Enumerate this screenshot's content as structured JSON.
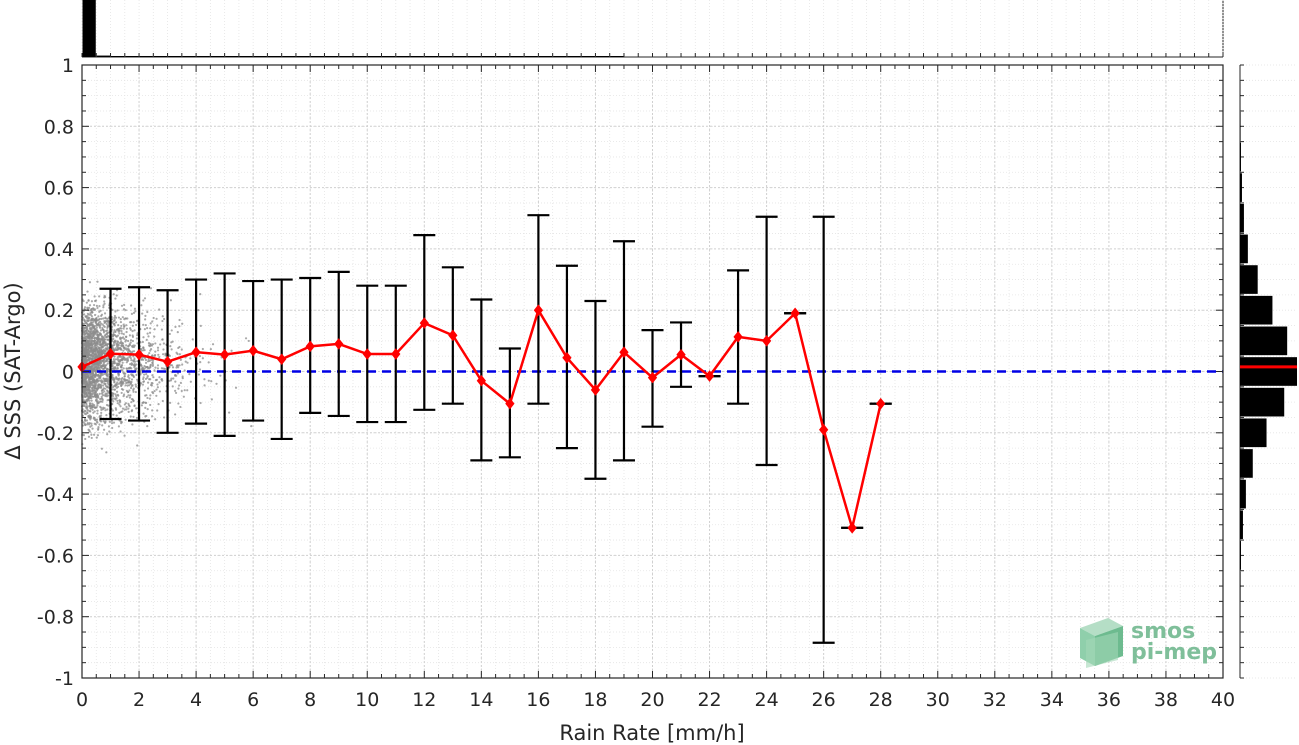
{
  "chart_data": {
    "type": "scatter",
    "title": "",
    "xlabel": "Rain Rate [mm/h]",
    "ylabel": "Δ SSS (SAT-Argo)",
    "xlim": [
      0,
      40
    ],
    "ylim": [
      -1,
      1
    ],
    "x_ticks": [
      "0",
      "2",
      "4",
      "6",
      "8",
      "10",
      "12",
      "14",
      "16",
      "18",
      "20",
      "22",
      "24",
      "26",
      "28",
      "30",
      "32",
      "34",
      "36",
      "38",
      "40"
    ],
    "y_ticks": [
      "1",
      "0.8",
      "0.6",
      "0.4",
      "0.2",
      "0",
      "-0.2",
      "-0.4",
      "-0.6",
      "-0.8",
      "-1"
    ],
    "grid": true,
    "reference_line": {
      "y": 0,
      "color": "#0000e6",
      "style": "dashed"
    },
    "mean_series": {
      "color": "#ff0000",
      "x": [
        0,
        1,
        2,
        3,
        4,
        5,
        6,
        7,
        8,
        9,
        10,
        11,
        12,
        13,
        14,
        15,
        16,
        17,
        18,
        19,
        20,
        21,
        22,
        23,
        24,
        25,
        26,
        27,
        28
      ],
      "mean": [
        0.015,
        0.058,
        0.055,
        0.032,
        0.063,
        0.055,
        0.068,
        0.04,
        0.082,
        0.09,
        0.057,
        0.057,
        0.158,
        0.118,
        -0.03,
        -0.105,
        0.2,
        0.045,
        -0.06,
        0.063,
        -0.02,
        0.055,
        -0.015,
        0.113,
        0.1,
        0.19,
        -0.19,
        -0.51,
        -0.105
      ],
      "upper": [
        null,
        0.27,
        0.275,
        0.265,
        0.3,
        0.32,
        0.295,
        0.3,
        0.305,
        0.325,
        0.28,
        0.28,
        0.445,
        0.34,
        0.235,
        0.075,
        0.51,
        0.345,
        0.23,
        0.425,
        0.135,
        0.16,
        -0.015,
        0.33,
        0.505,
        0.19,
        0.505,
        -0.51,
        -0.105
      ],
      "lower": [
        null,
        -0.155,
        -0.16,
        -0.2,
        -0.17,
        -0.21,
        -0.16,
        -0.22,
        -0.135,
        -0.145,
        -0.165,
        -0.165,
        -0.125,
        -0.105,
        -0.29,
        -0.28,
        -0.105,
        -0.25,
        -0.35,
        -0.29,
        -0.18,
        -0.05,
        -0.015,
        -0.105,
        -0.305,
        0.19,
        -0.885,
        -0.51,
        -0.105
      ]
    },
    "scatter_color": "#8c8c8c",
    "right_histogram": {
      "y_centers": [
        0.9,
        0.8,
        0.7,
        0.6,
        0.5,
        0.4,
        0.3,
        0.2,
        0.1,
        0.0,
        -0.1,
        -0.2,
        -0.3,
        -0.4,
        -0.5,
        -0.6,
        -0.7,
        -0.8,
        -0.9
      ],
      "counts": [
        0.3,
        0.6,
        1,
        2,
        4,
        8,
        18,
        33,
        48,
        58,
        45,
        27,
        13,
        6,
        3,
        1,
        0.6,
        0.4,
        0.3
      ],
      "median_line": {
        "y": 0.015,
        "color": "#ff0000"
      }
    },
    "top_histogram": {
      "x_centers": [
        0.25,
        0.75,
        1.25,
        1.75,
        2.25,
        2.75,
        3.25,
        3.75,
        4.25,
        4.75,
        5.25,
        5.75,
        6.25,
        6.75,
        7.25,
        7.75,
        8.25,
        8.75,
        9.25,
        9.75,
        10.25,
        10.75,
        11.25,
        11.75,
        12.25,
        12.75,
        13.25,
        13.75,
        14.25,
        14.75,
        15.25,
        15.75,
        16.25,
        16.75,
        17.25,
        17.75,
        18.25,
        18.75
      ],
      "counts": [
        100,
        2.5,
        1.6,
        1.2,
        1,
        0.9,
        0.8,
        0.7,
        0.6,
        0.6,
        0.5,
        0.5,
        0.5,
        0.5,
        0.5,
        0.5,
        0.5,
        0.5,
        0.5,
        0.5,
        0.5,
        0.5,
        0.5,
        0.5,
        0.5,
        0.5,
        0.5,
        0.5,
        0.5,
        0.5,
        0.5,
        0.5,
        0.5,
        0.5,
        0.5,
        0.5,
        0.5,
        0.5
      ]
    }
  },
  "logo": {
    "line1": "smos",
    "line2": "pi-mep"
  }
}
